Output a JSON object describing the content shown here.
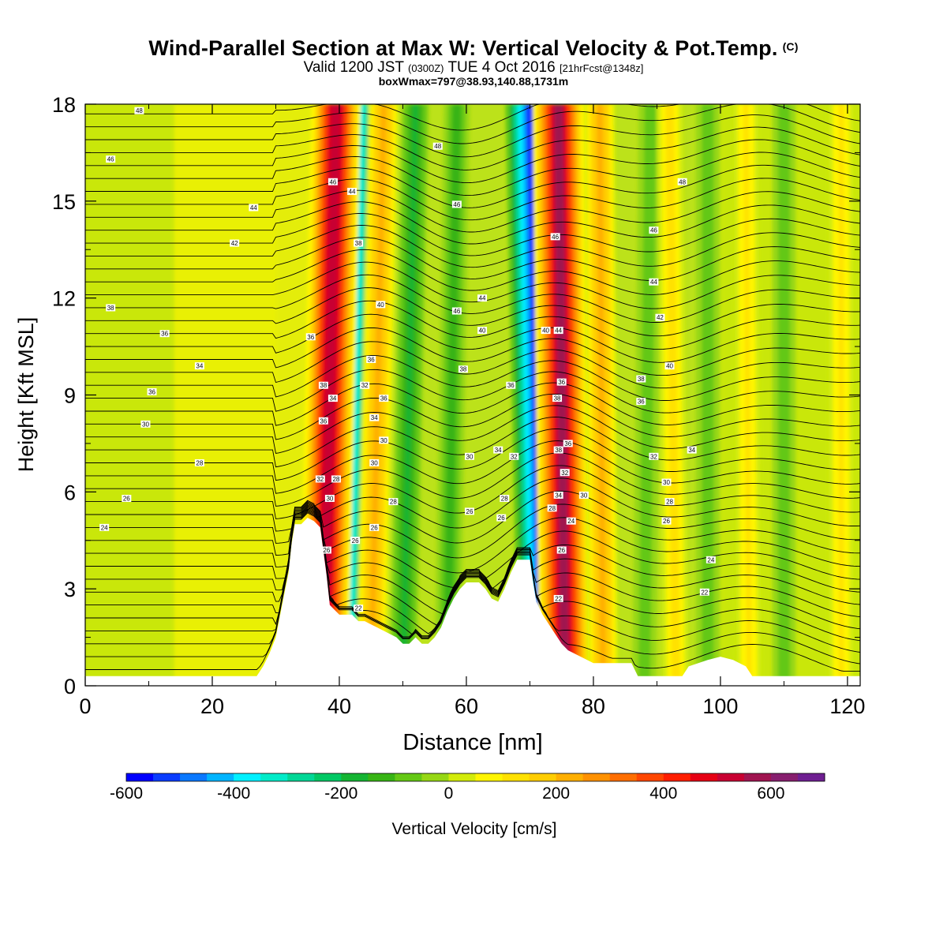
{
  "title": {
    "main": "Wind-Parallel Section at Max W: Vertical Velocity & Pot.Temp.",
    "main_suffix": "(C)",
    "valid_prefix": "Valid 1200 JST",
    "valid_z": "(0300Z)",
    "valid_date": "TUE 4 Oct 2016",
    "valid_fcst": "[21hrFcst@1348z]",
    "boxwmax": "boxWmax=797@38.93,140.88,1731m"
  },
  "chart_data": {
    "type": "heatmap",
    "xlabel": "Distance [nm]",
    "ylabel": "Height [Kft MSL]",
    "xlim": [
      0,
      122
    ],
    "ylim": [
      0,
      18
    ],
    "x_ticks": [
      "0",
      "20",
      "40",
      "60",
      "80",
      "100",
      "120"
    ],
    "y_ticks": [
      "0",
      "3",
      "6",
      "9",
      "12",
      "15",
      "18"
    ],
    "colorbar": {
      "label": "Vertical Velocity [cm/s]",
      "range": [
        -600,
        700
      ],
      "step": 50,
      "tick_labels": [
        "-600",
        "-400",
        "-200",
        "0",
        "200",
        "400",
        "600"
      ],
      "colors": [
        "#0000ff",
        "#0a3cff",
        "#0a78ff",
        "#00b4ff",
        "#00f0ff",
        "#00ebc8",
        "#00d796",
        "#00c864",
        "#14b432",
        "#37b414",
        "#64c814",
        "#96d714",
        "#d2eb0a",
        "#fff500",
        "#ffe100",
        "#ffcd00",
        "#ffaf00",
        "#ff9100",
        "#ff6e00",
        "#ff4600",
        "#ff1e00",
        "#e60014",
        "#c80032",
        "#a01450",
        "#871e6e",
        "#6e1e91"
      ]
    },
    "terrain_profile_kft": [
      [
        0,
        0.3
      ],
      [
        27,
        0.3
      ],
      [
        28,
        0.6
      ],
      [
        29,
        1
      ],
      [
        30,
        1.5
      ],
      [
        30.5,
        2
      ],
      [
        31,
        2.5
      ],
      [
        31.5,
        3
      ],
      [
        32,
        3.5
      ],
      [
        32.5,
        4.4
      ],
      [
        33,
        5
      ],
      [
        34,
        5
      ],
      [
        35,
        5.2
      ],
      [
        36,
        5.1
      ],
      [
        37,
        4.9
      ],
      [
        38,
        3.4
      ],
      [
        38.5,
        2.5
      ],
      [
        39,
        2.4
      ],
      [
        40,
        2.2
      ],
      [
        42,
        2.2
      ],
      [
        43,
        2.0
      ],
      [
        44,
        2.0
      ],
      [
        45,
        1.9
      ],
      [
        46,
        1.8
      ],
      [
        47,
        1.7
      ],
      [
        48,
        1.6
      ],
      [
        49,
        1.5
      ],
      [
        50,
        1.3
      ],
      [
        51,
        1.3
      ],
      [
        52,
        1.5
      ],
      [
        53,
        1.3
      ],
      [
        54,
        1.3
      ],
      [
        55,
        1.5
      ],
      [
        56,
        1.8
      ],
      [
        57,
        2.3
      ],
      [
        58,
        2.7
      ],
      [
        59,
        3.0
      ],
      [
        60,
        3.2
      ],
      [
        61,
        3.2
      ],
      [
        62,
        3.2
      ],
      [
        63,
        3.0
      ],
      [
        64,
        2.7
      ],
      [
        65,
        2.6
      ],
      [
        66,
        3.0
      ],
      [
        67,
        3.5
      ],
      [
        68,
        3.9
      ],
      [
        69,
        3.9
      ],
      [
        70,
        3.9
      ],
      [
        70.5,
        3.2
      ],
      [
        71,
        2.6
      ],
      [
        72,
        2.2
      ],
      [
        73,
        1.9
      ],
      [
        74,
        1.6
      ],
      [
        75,
        1.3
      ],
      [
        76,
        1.1
      ],
      [
        78,
        0.9
      ],
      [
        80,
        0.7
      ],
      [
        86,
        0.7
      ],
      [
        87,
        0.3
      ],
      [
        94,
        0.3
      ],
      [
        95,
        0.6
      ],
      [
        98,
        0.8
      ],
      [
        100,
        0.9
      ],
      [
        102,
        0.8
      ],
      [
        104,
        0.6
      ],
      [
        105,
        0.3
      ],
      [
        122,
        0.3
      ]
    ],
    "updraft_bands": [
      {
        "x_top": 39.5,
        "x_bottom": 37.5,
        "peak_cm_s": 600
      },
      {
        "x_top": 47,
        "x_bottom": 45,
        "peak_cm_s": 250
      },
      {
        "x_top": 74.5,
        "x_bottom": 75.5,
        "peak_cm_s": 650
      },
      {
        "x_top": 81,
        "x_bottom": 81.5,
        "peak_cm_s": 250
      },
      {
        "x_top": 92,
        "x_bottom": 93,
        "peak_cm_s": 150
      },
      {
        "x_top": 104,
        "x_bottom": 104.5,
        "peak_cm_s": 120
      },
      {
        "x_top": 119,
        "x_bottom": 119,
        "peak_cm_s": 120
      }
    ],
    "downdraft_bands": [
      {
        "x_top": 43,
        "x_bottom": 41,
        "peak_cm_s": -450
      },
      {
        "x_top": 70,
        "x_bottom": 72,
        "peak_cm_s": -600
      },
      {
        "x_top": 52,
        "x_bottom": 50,
        "peak_cm_s": -180
      },
      {
        "x_top": 58.5,
        "x_bottom": 57,
        "peak_cm_s": -150
      },
      {
        "x_top": 89,
        "x_bottom": 88,
        "peak_cm_s": -100
      },
      {
        "x_top": 98,
        "x_bottom": 98,
        "peak_cm_s": -100
      },
      {
        "x_top": 110,
        "x_bottom": 110,
        "peak_cm_s": -100
      }
    ],
    "theta_labels": [
      {
        "x": 8.5,
        "y": 17.8,
        "text": "48"
      },
      {
        "x": 4,
        "y": 16.3,
        "text": "46"
      },
      {
        "x": 26.5,
        "y": 14.8,
        "text": "44"
      },
      {
        "x": 23.5,
        "y": 13.7,
        "text": "42"
      },
      {
        "x": 4,
        "y": 11.7,
        "text": "38"
      },
      {
        "x": 12.5,
        "y": 10.9,
        "text": "36"
      },
      {
        "x": 18,
        "y": 9.9,
        "text": "34"
      },
      {
        "x": 10.5,
        "y": 9.1,
        "text": "36"
      },
      {
        "x": 9.5,
        "y": 8.1,
        "text": "30"
      },
      {
        "x": 18,
        "y": 6.9,
        "text": "28"
      },
      {
        "x": 6.5,
        "y": 5.8,
        "text": "26"
      },
      {
        "x": 3,
        "y": 4.9,
        "text": "24"
      },
      {
        "x": 39,
        "y": 15.6,
        "text": "46"
      },
      {
        "x": 42,
        "y": 15.3,
        "text": "44"
      },
      {
        "x": 43,
        "y": 13.7,
        "text": "38"
      },
      {
        "x": 46.5,
        "y": 11.8,
        "text": "40"
      },
      {
        "x": 35.5,
        "y": 10.8,
        "text": "36"
      },
      {
        "x": 37.5,
        "y": 9.3,
        "text": "38"
      },
      {
        "x": 39,
        "y": 8.9,
        "text": "34"
      },
      {
        "x": 37.5,
        "y": 8.2,
        "text": "36"
      },
      {
        "x": 45,
        "y": 10.1,
        "text": "36"
      },
      {
        "x": 44,
        "y": 9.3,
        "text": "32"
      },
      {
        "x": 47,
        "y": 8.9,
        "text": "36"
      },
      {
        "x": 45.5,
        "y": 8.3,
        "text": "34"
      },
      {
        "x": 47,
        "y": 7.6,
        "text": "30"
      },
      {
        "x": 45.5,
        "y": 6.9,
        "text": "30"
      },
      {
        "x": 37,
        "y": 6.4,
        "text": "32"
      },
      {
        "x": 39.5,
        "y": 6.4,
        "text": "28"
      },
      {
        "x": 38.5,
        "y": 5.8,
        "text": "30"
      },
      {
        "x": 48.5,
        "y": 5.7,
        "text": "28"
      },
      {
        "x": 45.5,
        "y": 4.9,
        "text": "26"
      },
      {
        "x": 42.5,
        "y": 4.5,
        "text": "26"
      },
      {
        "x": 38,
        "y": 4.2,
        "text": "26"
      },
      {
        "x": 43,
        "y": 2.4,
        "text": "22"
      },
      {
        "x": 55.5,
        "y": 16.7,
        "text": "48"
      },
      {
        "x": 58.5,
        "y": 14.9,
        "text": "46"
      },
      {
        "x": 62.5,
        "y": 12.0,
        "text": "44"
      },
      {
        "x": 58.5,
        "y": 11.6,
        "text": "46"
      },
      {
        "x": 62.5,
        "y": 11.0,
        "text": "40"
      },
      {
        "x": 59.5,
        "y": 9.8,
        "text": "38"
      },
      {
        "x": 67,
        "y": 9.3,
        "text": "36"
      },
      {
        "x": 65,
        "y": 7.3,
        "text": "34"
      },
      {
        "x": 67.5,
        "y": 7.1,
        "text": "32"
      },
      {
        "x": 60.5,
        "y": 7.1,
        "text": "30"
      },
      {
        "x": 66,
        "y": 5.8,
        "text": "28"
      },
      {
        "x": 60.5,
        "y": 5.4,
        "text": "26"
      },
      {
        "x": 65.5,
        "y": 5.2,
        "text": "26"
      },
      {
        "x": 74,
        "y": 13.9,
        "text": "46"
      },
      {
        "x": 72.5,
        "y": 11.0,
        "text": "40"
      },
      {
        "x": 74.5,
        "y": 11.0,
        "text": "44"
      },
      {
        "x": 75,
        "y": 9.4,
        "text": "36"
      },
      {
        "x": 74.3,
        "y": 8.9,
        "text": "38"
      },
      {
        "x": 74.5,
        "y": 7.3,
        "text": "38"
      },
      {
        "x": 76,
        "y": 7.5,
        "text": "36"
      },
      {
        "x": 75.5,
        "y": 6.6,
        "text": "32"
      },
      {
        "x": 74.5,
        "y": 5.9,
        "text": "34"
      },
      {
        "x": 78.5,
        "y": 5.9,
        "text": "30"
      },
      {
        "x": 73.5,
        "y": 5.5,
        "text": "28"
      },
      {
        "x": 76.5,
        "y": 5.1,
        "text": "24"
      },
      {
        "x": 75,
        "y": 4.2,
        "text": "26"
      },
      {
        "x": 74.5,
        "y": 2.7,
        "text": "22"
      },
      {
        "x": 94,
        "y": 15.6,
        "text": "48"
      },
      {
        "x": 89.5,
        "y": 14.1,
        "text": "46"
      },
      {
        "x": 89.5,
        "y": 12.5,
        "text": "44"
      },
      {
        "x": 90.5,
        "y": 11.4,
        "text": "42"
      },
      {
        "x": 92,
        "y": 9.9,
        "text": "40"
      },
      {
        "x": 87.5,
        "y": 9.5,
        "text": "38"
      },
      {
        "x": 87.5,
        "y": 8.8,
        "text": "36"
      },
      {
        "x": 95.5,
        "y": 7.3,
        "text": "34"
      },
      {
        "x": 89.5,
        "y": 7.1,
        "text": "32"
      },
      {
        "x": 91.5,
        "y": 6.3,
        "text": "30"
      },
      {
        "x": 92,
        "y": 5.7,
        "text": "28"
      },
      {
        "x": 91.5,
        "y": 5.1,
        "text": "26"
      },
      {
        "x": 98.5,
        "y": 3.9,
        "text": "24"
      },
      {
        "x": 97.5,
        "y": 2.9,
        "text": "22"
      }
    ]
  }
}
